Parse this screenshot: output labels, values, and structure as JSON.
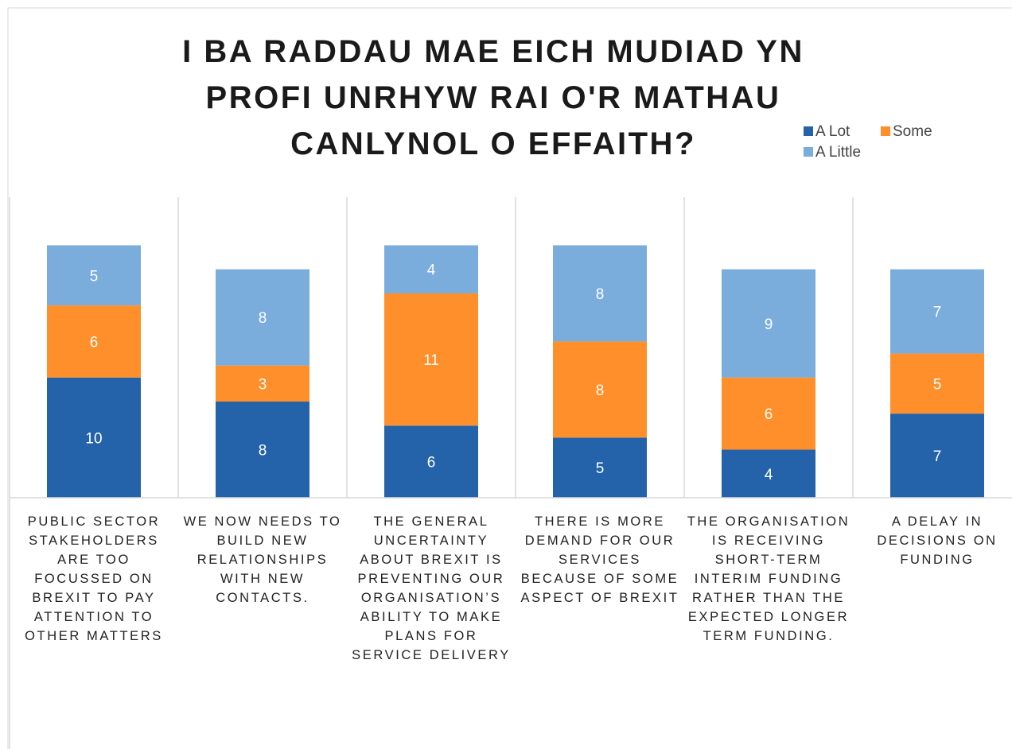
{
  "chart_data": {
    "type": "stacked_bar",
    "title": "I BA RADDAU MAE EICH MUDIAD YN PROFI UNRHYW RAI O'R MATHAU CANLYNOL O EFFAITH?",
    "categories": [
      "PUBLIC SECTOR STAKEHOLDERS ARE TOO FOCUSSED ON BREXIT TO PAY ATTENTION TO OTHER MATTERS",
      "WE NOW NEEDS TO BUILD NEW RELATIONSHIPS WITH NEW CONTACTS.",
      "THE GENERAL UNCERTAINTY ABOUT BREXIT IS PREVENTING OUR ORGANISATION’S ABILITY TO MAKE PLANS FOR SERVICE DELIVERY",
      "THERE IS MORE DEMAND FOR OUR SERVICES BECAUSE OF SOME ASPECT OF BREXIT",
      "THE ORGANISATION IS RECEIVING SHORT-TERM INTERIM FUNDING RATHER THAN THE EXPECTED LONGER TERM FUNDING.",
      "A DELAY IN DECISIONS ON FUNDING"
    ],
    "series": [
      {
        "name": "A Lot",
        "color": "#2462a9",
        "values": [
          10,
          8,
          6,
          5,
          4,
          7
        ]
      },
      {
        "name": "Some",
        "color": "#ff8f2a",
        "values": [
          6,
          3,
          11,
          8,
          6,
          5
        ]
      },
      {
        "name": "A Little",
        "color": "#7aacdc",
        "values": [
          5,
          8,
          4,
          8,
          9,
          7
        ]
      }
    ],
    "ylim": [
      0,
      25
    ]
  }
}
